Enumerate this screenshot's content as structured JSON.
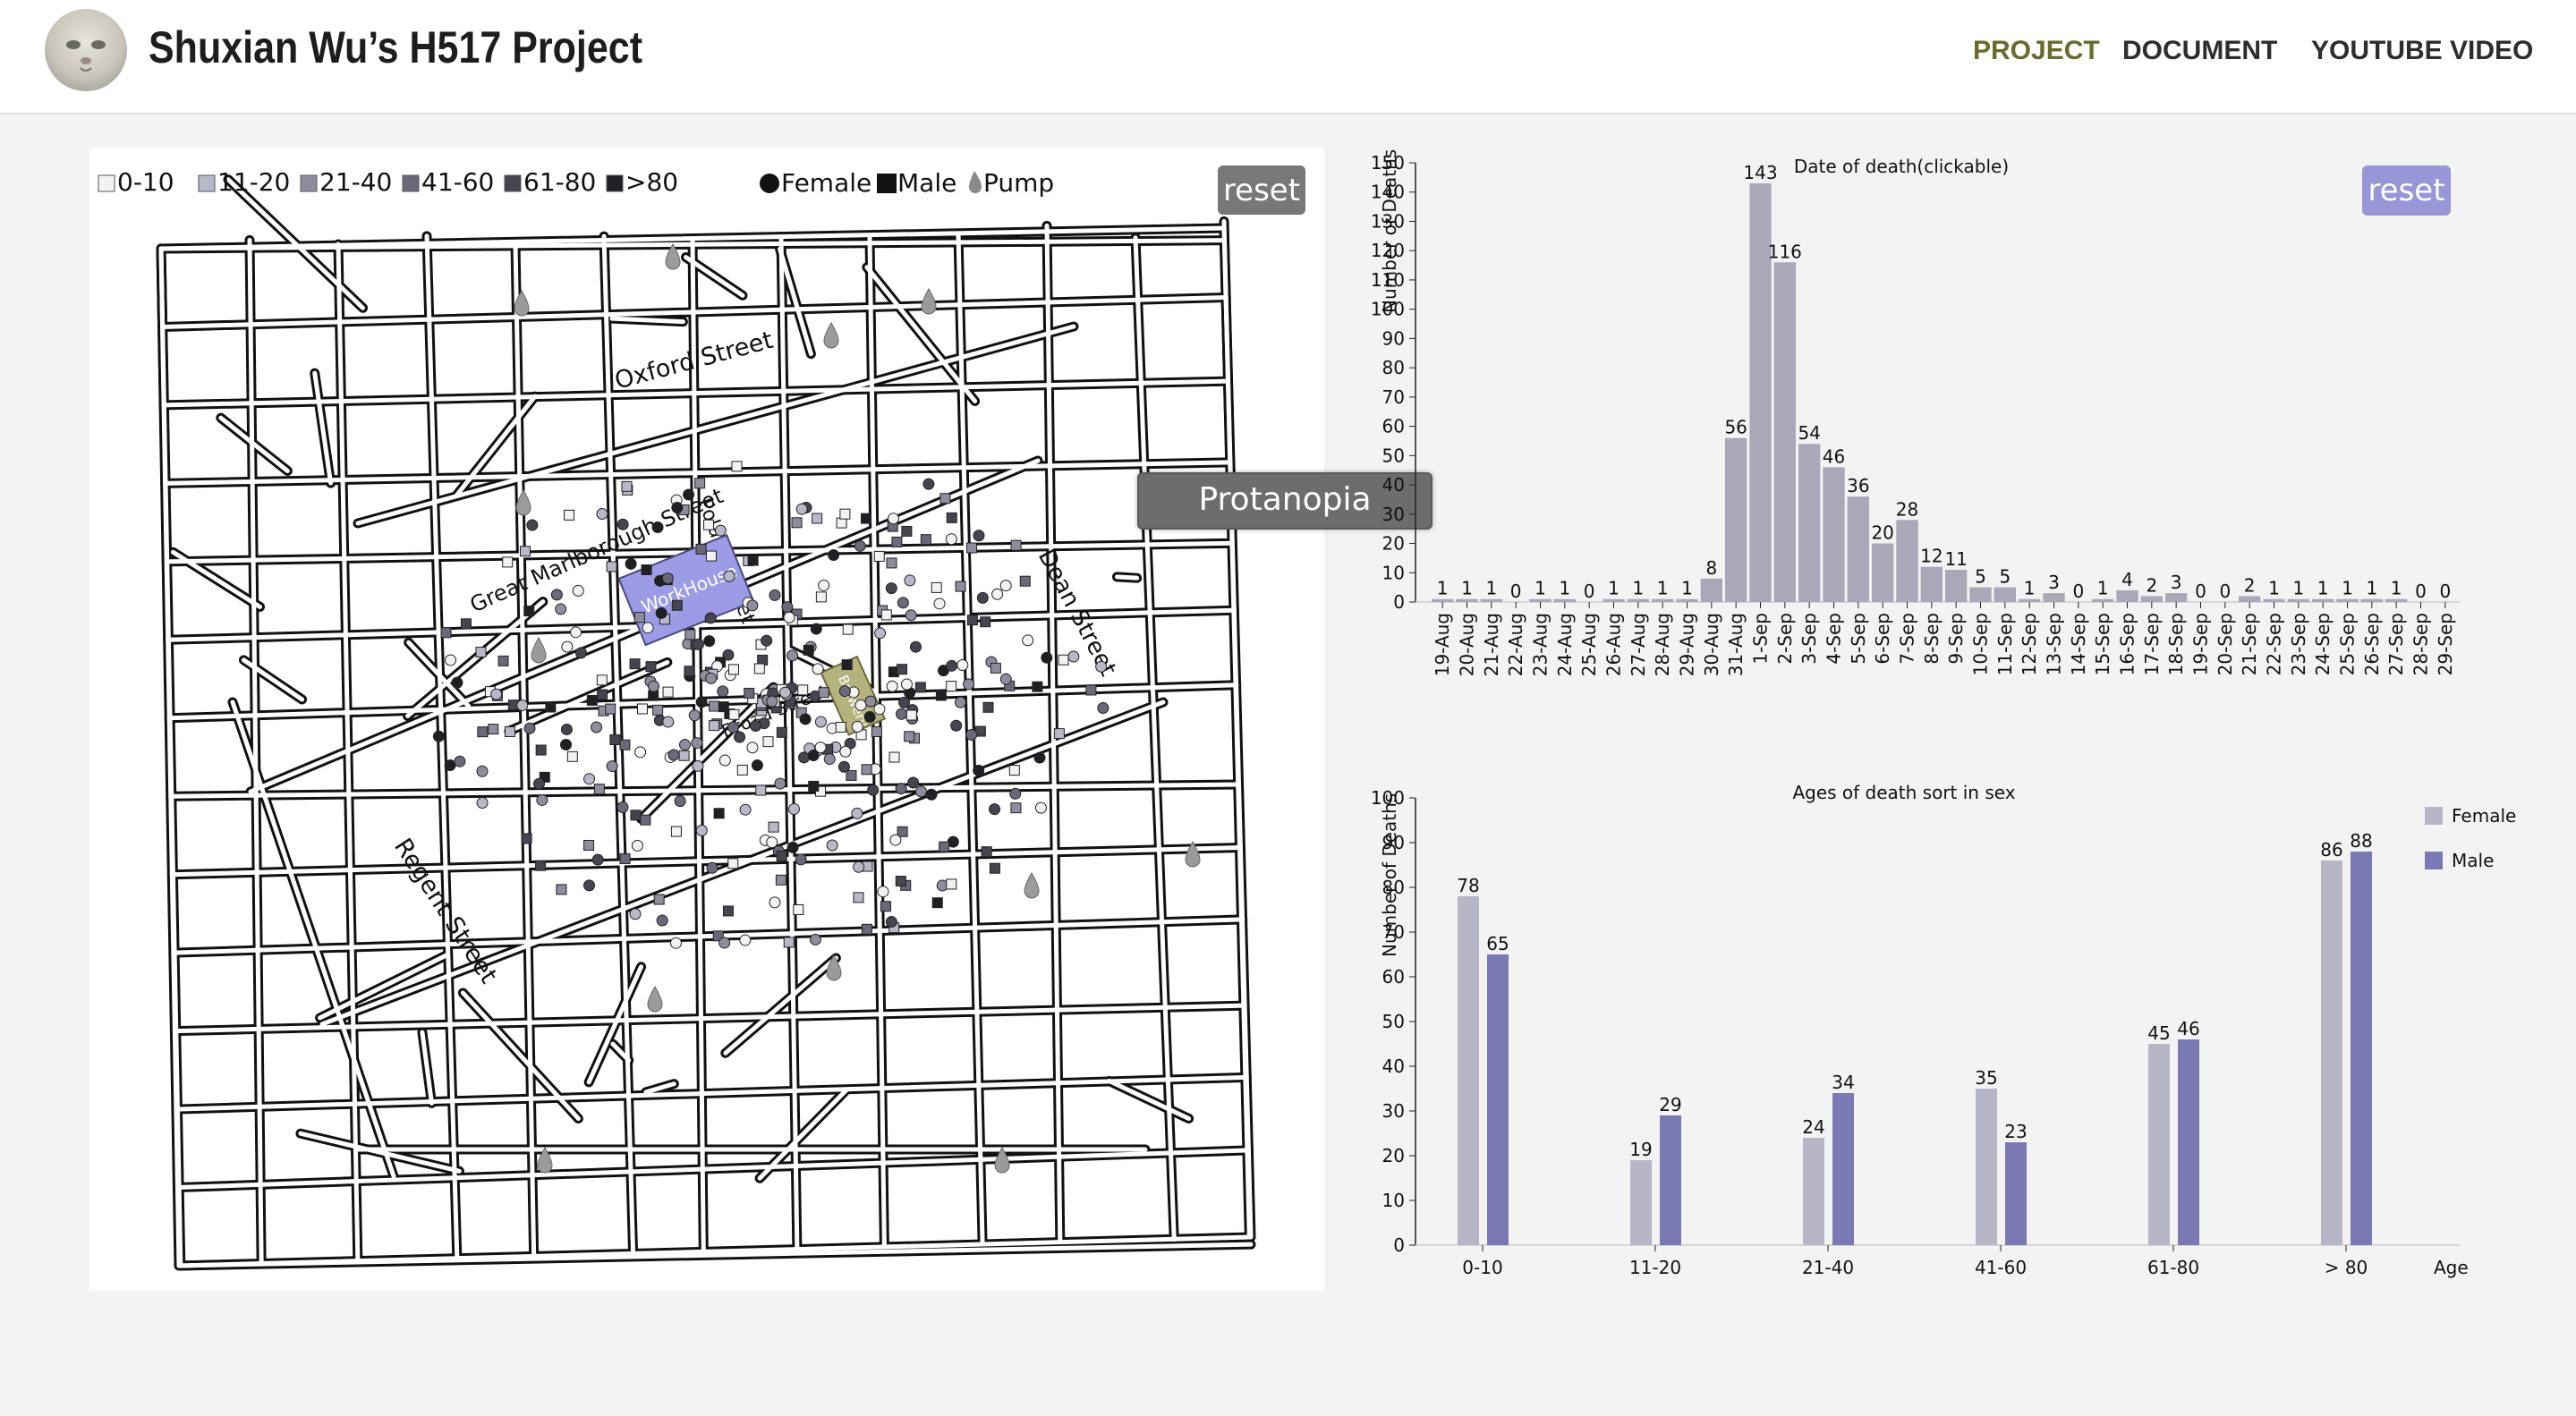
{
  "header": {
    "title": "Shuxian Wu’s H517 Project",
    "nav": [
      {
        "label": "PROJECT",
        "active": true
      },
      {
        "label": "DOCUMENT",
        "active": false
      },
      {
        "label": "YOUTUBE VIDEO",
        "active": false
      }
    ]
  },
  "map": {
    "legend": {
      "ages": [
        {
          "label": "0-10",
          "color": "#f2f2f2"
        },
        {
          "label": "11-20",
          "color": "#b9b8c9"
        },
        {
          "label": "21-40",
          "color": "#8e8d9e"
        },
        {
          "label": "41-60",
          "color": "#6a6979"
        },
        {
          "label": "61-80",
          "color": "#45444f"
        },
        {
          "label": ">80",
          "color": "#1f1f24"
        }
      ],
      "female": "Female",
      "male": "Male",
      "pump": "Pump"
    },
    "reset_label": "reset",
    "street_labels": [
      "Oxford Street",
      "Great Marlborough Street",
      "Regent Street",
      "Dean Street",
      "Poland Street",
      "Broad Street"
    ],
    "workhouse_label": "WorkHouse",
    "brewery_label": "Brewery",
    "tooltip": "Protanopia"
  },
  "date_chart": {
    "reset_label": "reset",
    "chart_data": {
      "type": "bar",
      "title": "Date of death(clickable)",
      "ylabel": "Number of Deaths",
      "xlabel": "",
      "ylim": [
        0,
        150
      ],
      "yticks": [
        0,
        10,
        20,
        30,
        40,
        50,
        60,
        70,
        80,
        90,
        100,
        110,
        120,
        130,
        140,
        150
      ],
      "categories": [
        "19-Aug",
        "20-Aug",
        "21-Aug",
        "22-Aug",
        "23-Aug",
        "24-Aug",
        "25-Aug",
        "26-Aug",
        "27-Aug",
        "28-Aug",
        "29-Aug",
        "30-Aug",
        "31-Aug",
        "1-Sep",
        "2-Sep",
        "3-Sep",
        "4-Sep",
        "5-Sep",
        "6-Sep",
        "7-Sep",
        "8-Sep",
        "9-Sep",
        "10-Sep",
        "11-Sep",
        "12-Sep",
        "13-Sep",
        "14-Sep",
        "15-Sep",
        "16-Sep",
        "17-Sep",
        "18-Sep",
        "19-Sep",
        "20-Sep",
        "21-Sep",
        "22-Sep",
        "23-Sep",
        "24-Sep",
        "25-Sep",
        "26-Sep",
        "27-Sep",
        "28-Sep",
        "29-Sep"
      ],
      "values": [
        1,
        1,
        1,
        0,
        1,
        1,
        0,
        1,
        1,
        1,
        1,
        8,
        56,
        143,
        116,
        54,
        46,
        36,
        20,
        28,
        12,
        11,
        5,
        5,
        1,
        3,
        0,
        1,
        4,
        2,
        3,
        0,
        0,
        2,
        1,
        1,
        1,
        1,
        1,
        1,
        0,
        0
      ],
      "color": "#a9a7b8"
    }
  },
  "age_chart": {
    "chart_data": {
      "type": "bar",
      "title": "Ages of death sort in sex",
      "ylabel": "Number of Deaths",
      "xlabel": "Age",
      "ylim": [
        0,
        100
      ],
      "yticks": [
        0,
        10,
        20,
        30,
        40,
        50,
        60,
        70,
        80,
        90,
        100
      ],
      "categories": [
        "0-10",
        "11-20",
        "21-40",
        "41-60",
        "61-80",
        "> 80"
      ],
      "series": [
        {
          "name": "Female",
          "values": [
            78,
            19,
            24,
            35,
            45,
            86
          ],
          "color": "#b7b6c7"
        },
        {
          "name": "Male",
          "values": [
            65,
            29,
            34,
            23,
            46,
            88
          ],
          "color": "#7a79b3"
        }
      ],
      "legend": "top-right"
    }
  }
}
